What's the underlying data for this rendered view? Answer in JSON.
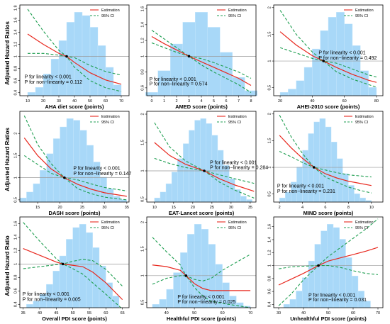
{
  "colors": {
    "histogram": "#a8d8f8",
    "histogram_edge": "#c9e8fc",
    "estimate": "#e8281e",
    "ci": "#1e9e50",
    "reference": "#999999"
  },
  "legend": {
    "estimation": "Estimation",
    "ci": "95% CI"
  },
  "y_axis_labels": [
    "Adjusted Hazard Ratios",
    "Adjusted Hazard Ratios",
    "Adjusted Hazard Ratio"
  ],
  "chart_data": [
    {
      "type": "line",
      "xlabel": "AHA diet score (points)",
      "xlim": [
        5,
        75
      ],
      "ylim": [
        0.35,
        1.85
      ],
      "xticks": [
        10,
        20,
        30,
        40,
        50,
        60,
        70
      ],
      "yticks": [
        0.4,
        0.6,
        0.8,
        1.0,
        1.2,
        1.4,
        1.6,
        1.8
      ],
      "histogram": {
        "edges": [
          10,
          15,
          20,
          25,
          30,
          35,
          40,
          45,
          50,
          55,
          60,
          65,
          70
        ],
        "heights": [
          0.04,
          0.1,
          0.26,
          0.44,
          0.66,
          0.88,
          1.0,
          0.96,
          0.82,
          0.6,
          0.34,
          0.13
        ]
      },
      "reference_y": 1.0,
      "knot_x": 35,
      "estimate": {
        "x": [
          10,
          20,
          30,
          35,
          40,
          50,
          60,
          70
        ],
        "y": [
          1.37,
          1.2,
          1.05,
          1.0,
          0.9,
          0.73,
          0.61,
          0.54
        ]
      },
      "ci_lower": {
        "x": [
          10,
          20,
          30,
          35,
          40,
          50,
          60,
          70
        ],
        "y": [
          1.05,
          1.05,
          1.02,
          1.0,
          0.82,
          0.6,
          0.48,
          0.42
        ]
      },
      "ci_upper": {
        "x": [
          10,
          20,
          30,
          35,
          40,
          50,
          60,
          70
        ],
        "y": [
          1.78,
          1.42,
          1.1,
          1.0,
          0.98,
          0.85,
          0.75,
          0.69
        ]
      },
      "p_linearity": "P for linearity < 0.001",
      "p_nonlinearity": "P for non−linearity = 0.112",
      "p_anchor": {
        "x": 8,
        "y1": 0.64,
        "y2": 0.55
      }
    },
    {
      "type": "line",
      "xlabel": "AMED score (points)",
      "xlim": [
        -0.4,
        8.4
      ],
      "ylim": [
        0.5,
        1.65
      ],
      "xticks": [
        0,
        1,
        2,
        3,
        4,
        5,
        6,
        7,
        8
      ],
      "yticks": [
        0.6,
        0.8,
        1.0,
        1.2,
        1.4,
        1.6
      ],
      "histogram": {
        "edges": [
          -0.5,
          0.5,
          1.5,
          2.5,
          3.5,
          4.5,
          5.5,
          6.5,
          7.5,
          8.5
        ],
        "heights": [
          0.04,
          0.3,
          0.62,
          0.88,
          1.0,
          0.82,
          0.52,
          0.22,
          0.06
        ]
      },
      "reference_y": 1.0,
      "knot_x": 3,
      "estimate": {
        "x": [
          0,
          1,
          2,
          3,
          4,
          5,
          6,
          7,
          8
        ],
        "y": [
          1.25,
          1.16,
          1.08,
          1.0,
          0.93,
          0.86,
          0.79,
          0.72,
          0.63
        ]
      },
      "ci_lower": {
        "x": [
          0,
          1,
          2,
          3,
          4,
          5,
          6,
          7,
          8
        ],
        "y": [
          1.17,
          1.11,
          1.05,
          1.0,
          0.89,
          0.8,
          0.72,
          0.64,
          0.54
        ]
      },
      "ci_upper": {
        "x": [
          0,
          1,
          2,
          3,
          4,
          5,
          6,
          7,
          8
        ],
        "y": [
          1.33,
          1.22,
          1.11,
          1.0,
          0.97,
          0.92,
          0.86,
          0.8,
          0.72
        ]
      },
      "p_linearity": "P for linearity < 0.001",
      "p_nonlinearity": "P for non−linearity = 0.574",
      "p_anchor": {
        "x": -0.2,
        "y1": 0.69,
        "y2": 0.63
      }
    },
    {
      "type": "line",
      "xlabel": "AHEI-2010 score (points)",
      "xlim": [
        16,
        84
      ],
      "ylim": [
        0.35,
        2.05
      ],
      "xticks": [
        20,
        40,
        60,
        80
      ],
      "yticks": [
        0.5,
        1.0,
        1.5,
        2.0
      ],
      "histogram": {
        "edges": [
          20,
          25,
          30,
          35,
          40,
          45,
          50,
          55,
          60,
          65,
          70,
          75,
          80
        ],
        "heights": [
          0.04,
          0.08,
          0.18,
          0.34,
          0.56,
          0.78,
          0.94,
          1.0,
          0.86,
          0.6,
          0.3,
          0.1
        ]
      },
      "reference_y": 1.0,
      "knot_x": 47,
      "estimate": {
        "x": [
          20,
          30,
          40,
          47,
          55,
          65,
          75,
          80
        ],
        "y": [
          1.55,
          1.3,
          1.1,
          1.0,
          0.88,
          0.75,
          0.64,
          0.6
        ]
      },
      "ci_lower": {
        "x": [
          20,
          30,
          40,
          47,
          55,
          65,
          75,
          80
        ],
        "y": [
          1.25,
          1.15,
          1.05,
          1.0,
          0.8,
          0.66,
          0.56,
          0.51
        ]
      },
      "ci_upper": {
        "x": [
          20,
          30,
          40,
          47,
          55,
          65,
          75,
          80
        ],
        "y": [
          1.95,
          1.5,
          1.17,
          1.0,
          0.96,
          0.85,
          0.74,
          0.7
        ]
      },
      "p_linearity": "P for linearity < 0.001",
      "p_nonlinearity": "P for non−linearity = 0.492",
      "p_anchor": {
        "x": 44,
        "y1": 1.13,
        "y2": 1.03
      }
    },
    {
      "type": "line",
      "xlabel": "DASH score (points)",
      "xlim": [
        11,
        35.5
      ],
      "ylim": [
        0.45,
        2.5
      ],
      "xticks": [
        15,
        20,
        25,
        30,
        35
      ],
      "yticks": [
        0.5,
        1.0,
        1.5,
        2.0
      ],
      "histogram": {
        "edges": [
          11,
          12.5,
          14,
          15.5,
          17,
          18.5,
          20,
          21.5,
          23,
          24.5,
          26,
          27.5,
          29,
          30.5,
          32,
          33.5,
          35
        ],
        "heights": [
          0.05,
          0.12,
          0.22,
          0.38,
          0.58,
          0.76,
          0.9,
          1.0,
          0.98,
          0.86,
          0.68,
          0.48,
          0.3,
          0.16,
          0.07,
          0.03
        ]
      },
      "reference_y": 1.0,
      "knot_x": 21,
      "estimate": {
        "x": [
          12,
          15,
          18,
          21,
          24,
          27,
          30,
          35
        ],
        "y": [
          1.9,
          1.5,
          1.2,
          1.0,
          0.85,
          0.74,
          0.66,
          0.58
        ]
      },
      "ci_lower": {
        "x": [
          12,
          15,
          18,
          21,
          24,
          27,
          30,
          35
        ],
        "y": [
          1.5,
          1.3,
          1.1,
          1.0,
          0.75,
          0.64,
          0.56,
          0.5
        ]
      },
      "ci_upper": {
        "x": [
          12,
          15,
          18,
          21,
          24,
          27,
          30,
          35
        ],
        "y": [
          2.4,
          1.75,
          1.32,
          1.0,
          0.95,
          0.86,
          0.78,
          0.7
        ]
      },
      "p_linearity": "P for linearity < 0.001",
      "p_nonlinearity": "P for non−linearity = 0.147",
      "p_anchor": {
        "x": 23,
        "y1": 1.18,
        "y2": 1.06
      }
    },
    {
      "type": "line",
      "xlabel": "EAT-Lancet score (points)",
      "xlim": [
        8,
        36.5
      ],
      "ylim": [
        0.45,
        2.05
      ],
      "xticks": [
        10,
        15,
        20,
        25,
        30,
        35
      ],
      "yticks": [
        0.5,
        1.0,
        1.5,
        2.0
      ],
      "histogram": {
        "edges": [
          10,
          11.5,
          13,
          14.5,
          16,
          17.5,
          19,
          20.5,
          22,
          23.5,
          25,
          26.5,
          28,
          29.5,
          31,
          32.5,
          34,
          35.5
        ],
        "heights": [
          0.05,
          0.12,
          0.22,
          0.36,
          0.52,
          0.7,
          0.86,
          0.98,
          1.0,
          0.94,
          0.8,
          0.62,
          0.44,
          0.28,
          0.15,
          0.07,
          0.03
        ]
      },
      "reference_y": 1.0,
      "knot_x": 23,
      "estimate": {
        "x": [
          10,
          14,
          18,
          23,
          27,
          31,
          36
        ],
        "y": [
          1.5,
          1.27,
          1.12,
          1.0,
          0.86,
          0.75,
          0.64
        ]
      },
      "ci_lower": {
        "x": [
          10,
          14,
          18,
          23,
          27,
          31,
          36
        ],
        "y": [
          1.22,
          1.13,
          1.06,
          1.0,
          0.8,
          0.66,
          0.52
        ]
      },
      "ci_upper": {
        "x": [
          10,
          14,
          18,
          23,
          27,
          31,
          36
        ],
        "y": [
          1.85,
          1.42,
          1.18,
          1.0,
          0.93,
          0.86,
          0.78
        ]
      },
      "p_linearity": "P for linearity < 0.001",
      "p_nonlinearity": "P for non−linearity = 0.284",
      "p_anchor": {
        "x": 24.5,
        "y1": 1.12,
        "y2": 1.03
      }
    },
    {
      "type": "line",
      "xlabel": "MIND score (points)",
      "xlim": [
        1.5,
        11
      ],
      "ylim": [
        0.35,
        2.05
      ],
      "xticks": [
        2,
        4,
        6,
        8,
        10
      ],
      "yticks": [
        0.5,
        1.0,
        1.5,
        2.0
      ],
      "histogram": {
        "edges": [
          2,
          2.5,
          3,
          3.5,
          4,
          4.5,
          5,
          5.5,
          6,
          6.5,
          7,
          7.5,
          8,
          8.5,
          9,
          9.5,
          10
        ],
        "heights": [
          0.05,
          0.12,
          0.24,
          0.42,
          0.62,
          0.82,
          0.96,
          1.0,
          0.9,
          0.72,
          0.52,
          0.34,
          0.2,
          0.1,
          0.05,
          0.02
        ]
      },
      "reference_y": 1.0,
      "knot_x": 5,
      "estimate": {
        "x": [
          2,
          3,
          4,
          5,
          6,
          7,
          8,
          9,
          10
        ],
        "y": [
          1.6,
          1.37,
          1.17,
          1.0,
          0.88,
          0.8,
          0.74,
          0.7,
          0.66
        ]
      },
      "ci_lower": {
        "x": [
          2,
          3,
          4,
          5,
          6,
          7,
          8,
          9,
          10
        ],
        "y": [
          1.3,
          1.2,
          1.09,
          1.0,
          0.82,
          0.72,
          0.63,
          0.57,
          0.52
        ]
      },
      "ci_upper": {
        "x": [
          2,
          3,
          4,
          5,
          6,
          7,
          8,
          9,
          10
        ],
        "y": [
          1.98,
          1.58,
          1.26,
          1.0,
          0.95,
          0.9,
          0.86,
          0.84,
          0.82
        ]
      },
      "p_linearity": "P for linearity < 0.001",
      "p_nonlinearity": "P for non−linearity = 0.231",
      "p_anchor": {
        "x": 1.8,
        "y1": 0.62,
        "y2": 0.52
      }
    },
    {
      "type": "line",
      "xlabel": "Overall PDI score (points)",
      "xlim": [
        34,
        67
      ],
      "ylim": [
        0.35,
        1.7
      ],
      "xticks": [
        35,
        40,
        45,
        50,
        55,
        60,
        65
      ],
      "yticks": [
        0.4,
        0.6,
        0.8,
        1.0,
        1.2,
        1.4,
        1.6
      ],
      "histogram": {
        "edges": [
          36,
          38,
          40,
          42,
          44,
          46,
          48,
          50,
          52,
          54,
          56,
          58,
          60,
          62,
          64
        ],
        "heights": [
          0.04,
          0.08,
          0.16,
          0.28,
          0.44,
          0.62,
          0.82,
          0.96,
          1.0,
          0.9,
          0.72,
          0.5,
          0.3,
          0.14
        ]
      },
      "reference_y": 1.0,
      "knot_x": 47,
      "estimate": {
        "x": [
          35,
          40,
          45,
          47,
          50,
          53,
          56,
          60,
          65
        ],
        "y": [
          1.23,
          1.13,
          1.03,
          1.0,
          0.98,
          0.96,
          0.88,
          0.72,
          0.47
        ]
      },
      "ci_lower": {
        "x": [
          35,
          40,
          45,
          47,
          50,
          53,
          56,
          60,
          65
        ],
        "y": [
          0.93,
          0.96,
          0.99,
          1.0,
          0.93,
          0.85,
          0.72,
          0.55,
          0.33
        ]
      },
      "ci_upper": {
        "x": [
          35,
          40,
          45,
          47,
          50,
          53,
          56,
          60,
          65
        ],
        "y": [
          1.62,
          1.34,
          1.08,
          1.0,
          1.04,
          1.07,
          1.05,
          0.92,
          0.67
        ]
      },
      "p_linearity": "P for linearity < 0.001",
      "p_nonlinearity": "P for non−linearity = 0.005",
      "p_anchor": {
        "x": 34.8,
        "y1": 0.53,
        "y2": 0.45
      }
    },
    {
      "type": "line",
      "xlabel": "Healthful PDI score (points)",
      "xlim": [
        33,
        72
      ],
      "ylim": [
        0.4,
        2.1
      ],
      "xticks": [
        40,
        50,
        60,
        70
      ],
      "yticks": [
        0.5,
        1.0,
        1.5,
        2.0
      ],
      "histogram": {
        "edges": [
          35,
          37.5,
          40,
          42.5,
          45,
          47.5,
          50,
          52.5,
          55,
          57.5,
          60,
          62.5,
          65,
          67.5,
          70
        ],
        "heights": [
          0.04,
          0.1,
          0.22,
          0.42,
          0.66,
          0.88,
          1.0,
          0.94,
          0.76,
          0.52,
          0.3,
          0.14,
          0.06,
          0.02
        ]
      },
      "reference_y": 1.0,
      "knot_x": 47,
      "estimate": {
        "x": [
          35,
          40,
          45,
          47,
          50,
          53,
          56,
          60,
          70
        ],
        "y": [
          1.2,
          1.17,
          1.1,
          1.0,
          0.85,
          0.76,
          0.72,
          0.72,
          0.72
        ]
      },
      "ci_lower": {
        "x": [
          35,
          40,
          45,
          47,
          50,
          53,
          56,
          60,
          70
        ],
        "y": [
          0.84,
          0.95,
          1.0,
          1.0,
          0.78,
          0.62,
          0.52,
          0.48,
          0.4
        ]
      },
      "ci_upper": {
        "x": [
          35,
          40,
          45,
          47,
          50,
          53,
          56,
          60,
          70
        ],
        "y": [
          1.72,
          1.45,
          1.2,
          1.0,
          0.93,
          0.9,
          0.95,
          1.1,
          1.4
        ]
      },
      "p_linearity": "P for linearity < 0.001",
      "p_nonlinearity": "P for non−linearity = 0.025",
      "p_anchor": {
        "x": 44,
        "y1": 0.57,
        "y2": 0.48
      }
    },
    {
      "type": "line",
      "xlabel": "Unhealthful PDI score (points)",
      "xlim": [
        28,
        72
      ],
      "ylim": [
        0.35,
        1.75
      ],
      "xticks": [
        30,
        40,
        50,
        60,
        70
      ],
      "yticks": [
        0.4,
        0.6,
        0.8,
        1.0,
        1.2,
        1.4,
        1.6
      ],
      "histogram": {
        "edges": [
          32,
          34.5,
          37,
          39.5,
          42,
          44.5,
          47,
          49.5,
          52,
          54.5,
          57,
          59.5,
          62,
          64.5,
          67
        ],
        "heights": [
          0.04,
          0.1,
          0.2,
          0.36,
          0.56,
          0.76,
          0.92,
          1.0,
          0.96,
          0.82,
          0.6,
          0.38,
          0.2,
          0.08
        ]
      },
      "reference_y": 1.0,
      "knot_x": 46,
      "estimate": {
        "x": [
          30,
          35,
          40,
          46,
          50,
          55,
          60,
          65,
          70
        ],
        "y": [
          0.7,
          0.79,
          0.88,
          1.0,
          1.07,
          1.12,
          1.17,
          1.22,
          1.28
        ]
      },
      "ci_lower": {
        "x": [
          30,
          35,
          40,
          46,
          50,
          55,
          60,
          65,
          70
        ],
        "y": [
          0.38,
          0.56,
          0.78,
          1.0,
          1.0,
          0.97,
          0.92,
          0.88,
          0.86
        ]
      },
      "ci_upper": {
        "x": [
          30,
          35,
          40,
          46,
          50,
          55,
          60,
          65,
          70
        ],
        "y": [
          0.95,
          0.98,
          0.99,
          1.0,
          1.14,
          1.28,
          1.42,
          1.56,
          1.72
        ]
      },
      "p_linearity": "P for linearity < 0.001",
      "p_nonlinearity": "P for non−linearity = 0.031",
      "p_anchor": {
        "x": 42,
        "y1": 0.52,
        "y2": 0.45
      }
    }
  ]
}
